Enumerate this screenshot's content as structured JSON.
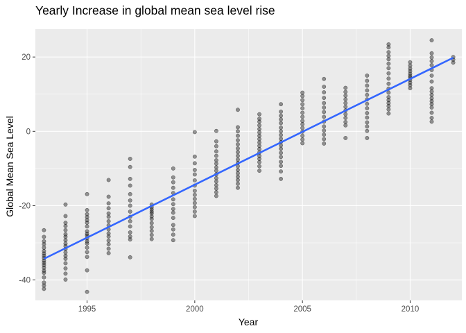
{
  "chart_data": {
    "type": "scatter",
    "title": "Yearly Increase in global mean sea level rise",
    "xlabel": "Year",
    "ylabel": "Global Mean Sea Level",
    "xlim": [
      1992.6,
      2012.4
    ],
    "ylim": [
      -45.5,
      27.5
    ],
    "x_ticks": [
      1995,
      2000,
      2005,
      2010
    ],
    "y_ticks": [
      -40,
      -20,
      0,
      20
    ],
    "x_tick_labels": [
      "1995",
      "2000",
      "2005",
      "2010"
    ],
    "y_tick_labels": [
      "-40",
      "-20",
      "0",
      "20"
    ],
    "grid": true,
    "legend": "none",
    "point_color": "#000000",
    "point_opacity": 0.4,
    "trend_color": "#3366ff",
    "panel_background": "#ebebeb",
    "trend_line": {
      "x": [
        1993,
        2012
      ],
      "y": [
        -34.3,
        19.8
      ]
    },
    "points": [
      {
        "year": 1993,
        "values": [
          -42.4,
          -41.5,
          -40.7,
          -39.3,
          -38.1,
          -37.5,
          -36.7,
          -36.0,
          -35.4,
          -34.8,
          -34.1,
          -33.5,
          -32.9,
          -32.2,
          -31.3,
          -30.4,
          -29.6,
          -28.4,
          -26.6
        ]
      },
      {
        "year": 1994,
        "values": [
          -39.9,
          -38.3,
          -36.9,
          -35.5,
          -34.3,
          -33.5,
          -32.6,
          -31.7,
          -30.9,
          -30.2,
          -29.3,
          -28.4,
          -27.7,
          -26.6,
          -25.5,
          -24.6,
          -22.8,
          -19.7
        ]
      },
      {
        "year": 1995,
        "values": [
          -43.2,
          -37.4,
          -33.8,
          -32.5,
          -31.3,
          -30.2,
          -29.6,
          -28.8,
          -28.1,
          -27.6,
          -26.9,
          -25.6,
          -24.6,
          -23.9,
          -23.1,
          -22.3,
          -21.2,
          -16.9
        ]
      },
      {
        "year": 1996,
        "values": [
          -32.8,
          -31.6,
          -30.4,
          -29.4,
          -28.3,
          -27.5,
          -26.4,
          -25.3,
          -24.2,
          -23.0,
          -22.1,
          -20.7,
          -19.4,
          -17.6,
          -13.1
        ]
      },
      {
        "year": 1997,
        "values": [
          -33.9,
          -29.1,
          -28.3,
          -27.2,
          -25.6,
          -24.2,
          -23.0,
          -21.6,
          -20.0,
          -18.6,
          -16.9,
          -14.6,
          -12.8,
          -9.6,
          -7.4
        ]
      },
      {
        "year": 1998,
        "values": [
          -29.0,
          -27.9,
          -26.8,
          -25.8,
          -24.7,
          -23.6,
          -22.9,
          -22.1,
          -21.6,
          -21.0,
          -20.4,
          -19.7
        ]
      },
      {
        "year": 1999,
        "values": [
          -29.3,
          -27.8,
          -26.4,
          -25.2,
          -23.3,
          -21.9,
          -20.9,
          -19.6,
          -18.3,
          -16.6,
          -15.2,
          -13.7,
          -12.4,
          -10.0
        ]
      },
      {
        "year": 2000,
        "values": [
          -22.8,
          -21.6,
          -20.4,
          -19.3,
          -18.2,
          -17.1,
          -16.0,
          -14.6,
          -13.2,
          -11.6,
          -10.4,
          -8.6,
          -6.8,
          -0.2
        ]
      },
      {
        "year": 2001,
        "values": [
          -17.4,
          -16.4,
          -15.4,
          -14.5,
          -13.5,
          -12.6,
          -11.6,
          -10.6,
          -9.7,
          -8.7,
          -7.8,
          -6.6,
          -5.4,
          -4.0,
          -2.7,
          0.1
        ]
      },
      {
        "year": 2002,
        "values": [
          -15.2,
          -14.1,
          -13.1,
          -12.2,
          -11.3,
          -10.4,
          -9.4,
          -8.5,
          -7.6,
          -6.6,
          -5.6,
          -4.6,
          -3.5,
          -2.4,
          -1.2,
          0.0,
          1.1,
          5.8
        ]
      },
      {
        "year": 2003,
        "values": [
          -10.6,
          -9.4,
          -8.3,
          -7.4,
          -6.6,
          -5.7,
          -4.8,
          -3.9,
          -3.0,
          -2.1,
          -1.2,
          -0.3,
          0.6,
          1.6,
          2.6,
          3.4,
          4.6
        ]
      },
      {
        "year": 2004,
        "values": [
          -12.8,
          -10.8,
          -9.3,
          -8.2,
          -6.9,
          -5.8,
          -4.7,
          -3.8,
          -2.9,
          -2.0,
          -1.0,
          0.0,
          1.0,
          2.2,
          3.2,
          4.2,
          5.3,
          7.3
        ]
      },
      {
        "year": 2005,
        "values": [
          -3.2,
          -2.2,
          -1.2,
          -0.1,
          0.9,
          1.9,
          2.8,
          3.9,
          5.0,
          6.2,
          7.3,
          8.4,
          9.5,
          10.4
        ]
      },
      {
        "year": 2006,
        "values": [
          -3.3,
          -2.1,
          -0.9,
          0.2,
          1.3,
          2.6,
          3.9,
          5.2,
          6.4,
          7.6,
          9.0,
          10.5,
          12.0,
          14.1
        ]
      },
      {
        "year": 2007,
        "values": [
          -1.8,
          1.6,
          2.5,
          3.6,
          4.6,
          5.6,
          6.6,
          7.6,
          8.6,
          9.6,
          10.6,
          11.7
        ]
      },
      {
        "year": 2008,
        "values": [
          -1.8,
          0.1,
          1.3,
          2.4,
          3.7,
          4.9,
          6.2,
          7.4,
          8.6,
          9.8,
          11.0,
          12.3,
          13.6,
          15.0
        ]
      },
      {
        "year": 2009,
        "values": [
          4.8,
          5.9,
          6.8,
          7.6,
          8.4,
          9.2,
          10.4,
          11.5,
          12.8,
          14.2,
          15.6,
          17.0,
          18.2,
          19.4,
          20.3,
          21.3,
          22.6,
          23.4
        ]
      },
      {
        "year": 2010,
        "values": [
          11.6,
          12.4,
          13.1,
          13.8,
          14.4,
          14.9,
          15.5,
          16.2,
          16.9,
          17.7,
          18.6
        ]
      },
      {
        "year": 2011,
        "values": [
          2.6,
          3.6,
          5.0,
          6.4,
          7.3,
          8.1,
          8.9,
          9.8,
          10.7,
          11.6,
          13.4,
          15.0,
          16.5,
          17.8,
          18.9,
          19.9,
          21.0,
          24.5
        ]
      },
      {
        "year": 2012,
        "values": [
          18.5,
          19.3,
          20.0
        ]
      }
    ]
  }
}
